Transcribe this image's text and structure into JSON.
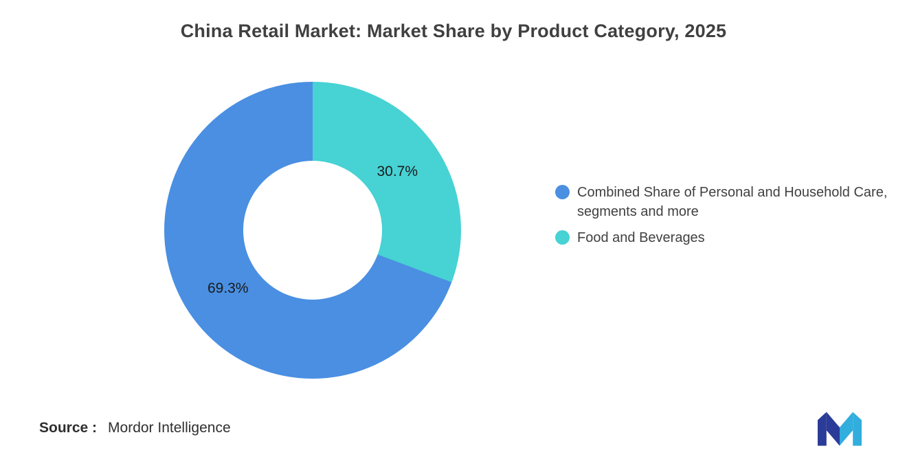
{
  "chart_data": {
    "type": "pie",
    "subtype": "donut",
    "title": "China Retail Market: Market Share by Product Category, 2025",
    "slices": [
      {
        "label": "Combined Share of Personal and Household Care, segments and more",
        "value": 69.3,
        "display": "69.3%",
        "color": "#4A8FE2"
      },
      {
        "label": "Food and Beverages",
        "value": 30.7,
        "display": "30.7%",
        "color": "#47D2D4"
      }
    ],
    "draw_order": [
      1,
      0
    ],
    "start_angle_deg": 0,
    "direction": "clockwise",
    "legend_position": "right",
    "data_labels": "percent-inside",
    "hole_ratio": 0.47
  },
  "source": {
    "label": "Source :",
    "value": "Mordor Intelligence"
  }
}
